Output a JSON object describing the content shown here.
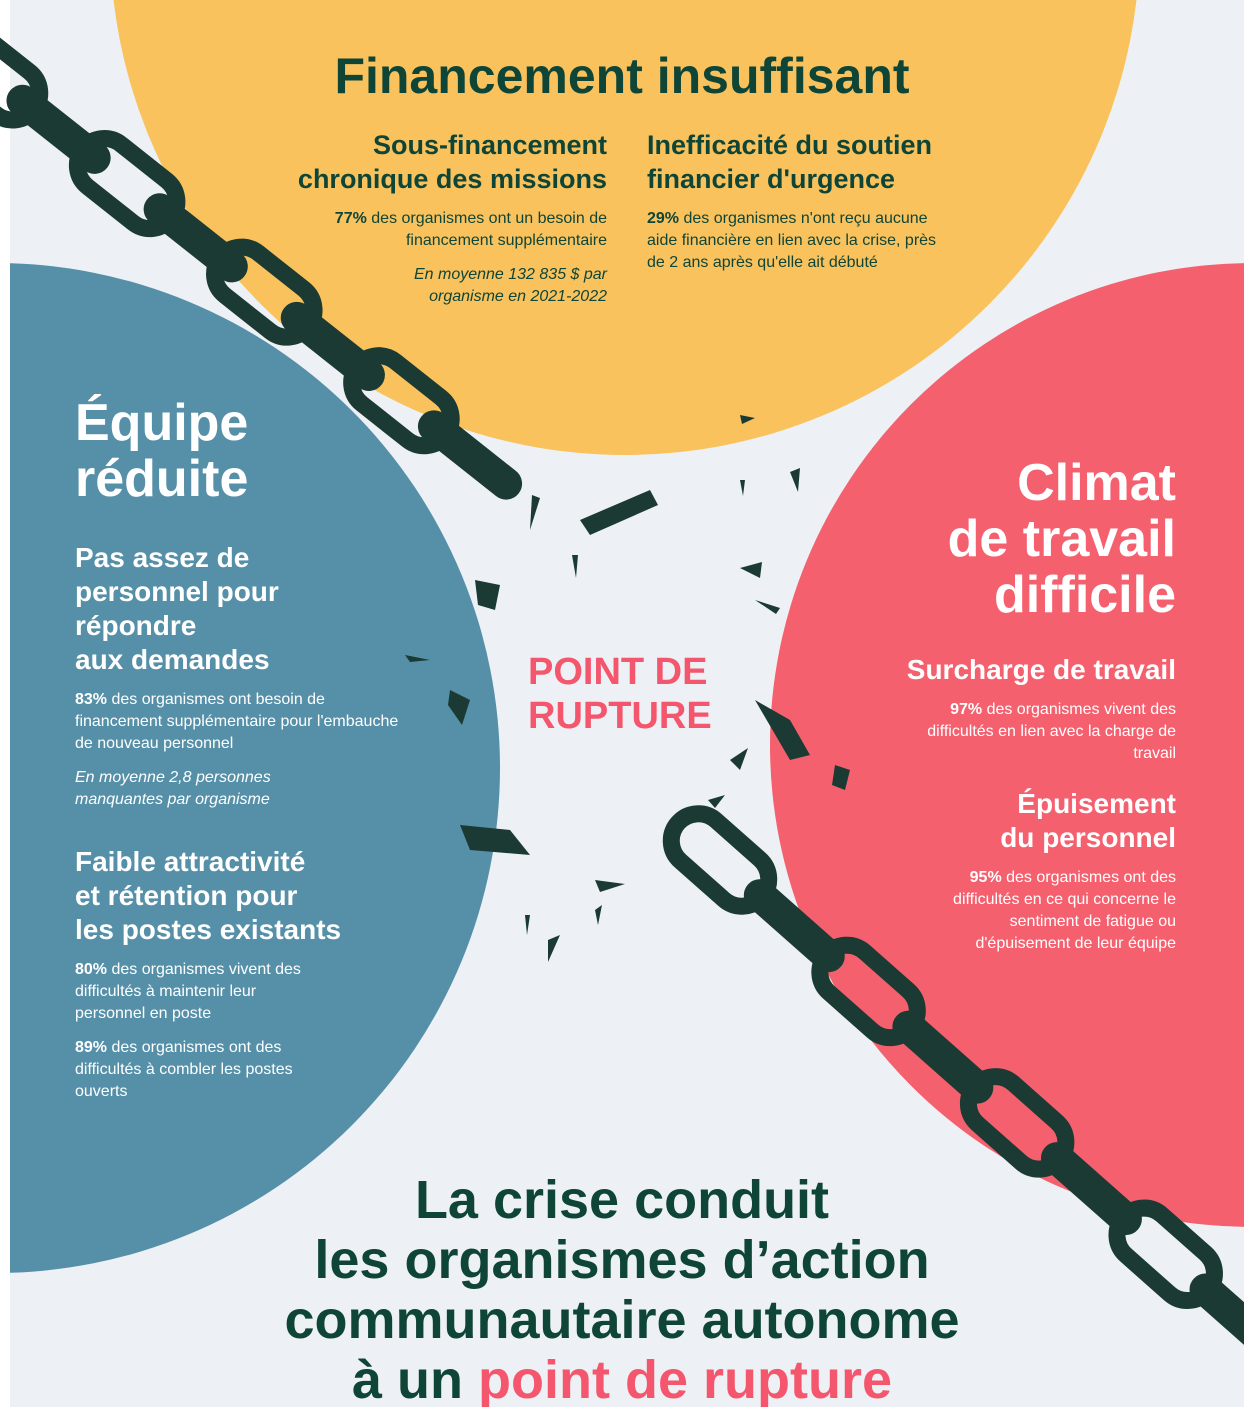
{
  "financement": {
    "title": "Financement insuffisant",
    "columns": [
      {
        "heading_lines": [
          "Sous-financement",
          "chronique des missions"
        ],
        "stats": [
          {
            "figure": "77%",
            "text": "des organismes ont un besoin de financement supplémentaire"
          }
        ],
        "note": "En moyenne 132 835 $ par organisme en 2021-2022"
      },
      {
        "heading_lines": [
          "Inefficacité du soutien",
          "financier d'urgence"
        ],
        "stats": [
          {
            "figure": "29%",
            "text": "des organismes n'ont reçu aucune aide financière en lien avec la crise, près de 2 ans après qu'elle ait débuté"
          }
        ]
      }
    ]
  },
  "equipe": {
    "title_lines": [
      "Équipe",
      "réduite"
    ],
    "groups": [
      {
        "heading_lines": [
          "Pas assez de",
          "personnel pour",
          "répondre",
          "aux demandes"
        ],
        "stats": [
          {
            "figure": "83%",
            "text": "des organismes ont besoin de financement supplémentaire pour l'embauche de nouveau personnel"
          }
        ],
        "note": "En moyenne 2,8 personnes manquantes par organisme"
      },
      {
        "heading_lines": [
          "Faible attractivité",
          "et rétention pour",
          "les postes existants"
        ],
        "stats": [
          {
            "figure": "80%",
            "text": "des organismes vivent des difficultés à maintenir leur personnel en poste"
          },
          {
            "figure": "89%",
            "text": "des organismes ont des difficultés à combler les postes ouverts"
          }
        ]
      }
    ]
  },
  "climat": {
    "title_lines": [
      "Climat",
      "de travail",
      "difficile"
    ],
    "groups": [
      {
        "heading_lines": [
          "Surcharge de travail"
        ],
        "stats": [
          {
            "figure": "97%",
            "text": "des organismes vivent des difficultés en lien avec la charge de travail"
          }
        ]
      },
      {
        "heading_lines": [
          "Épuisement",
          "du personnel"
        ],
        "stats": [
          {
            "figure": "95%",
            "text": "des organismes ont des difficultés en ce qui concerne le sentiment de fatigue ou d'épuisement de leur équipe"
          }
        ]
      }
    ]
  },
  "center_label": {
    "lines": [
      "POINT DE",
      "RUPTURE"
    ]
  },
  "conclusion": {
    "lines": [
      "La crise conduit",
      "les organismes d’action",
      "communautaire autonome"
    ],
    "last_prefix": "à un",
    "highlight": "point de rupture"
  }
}
